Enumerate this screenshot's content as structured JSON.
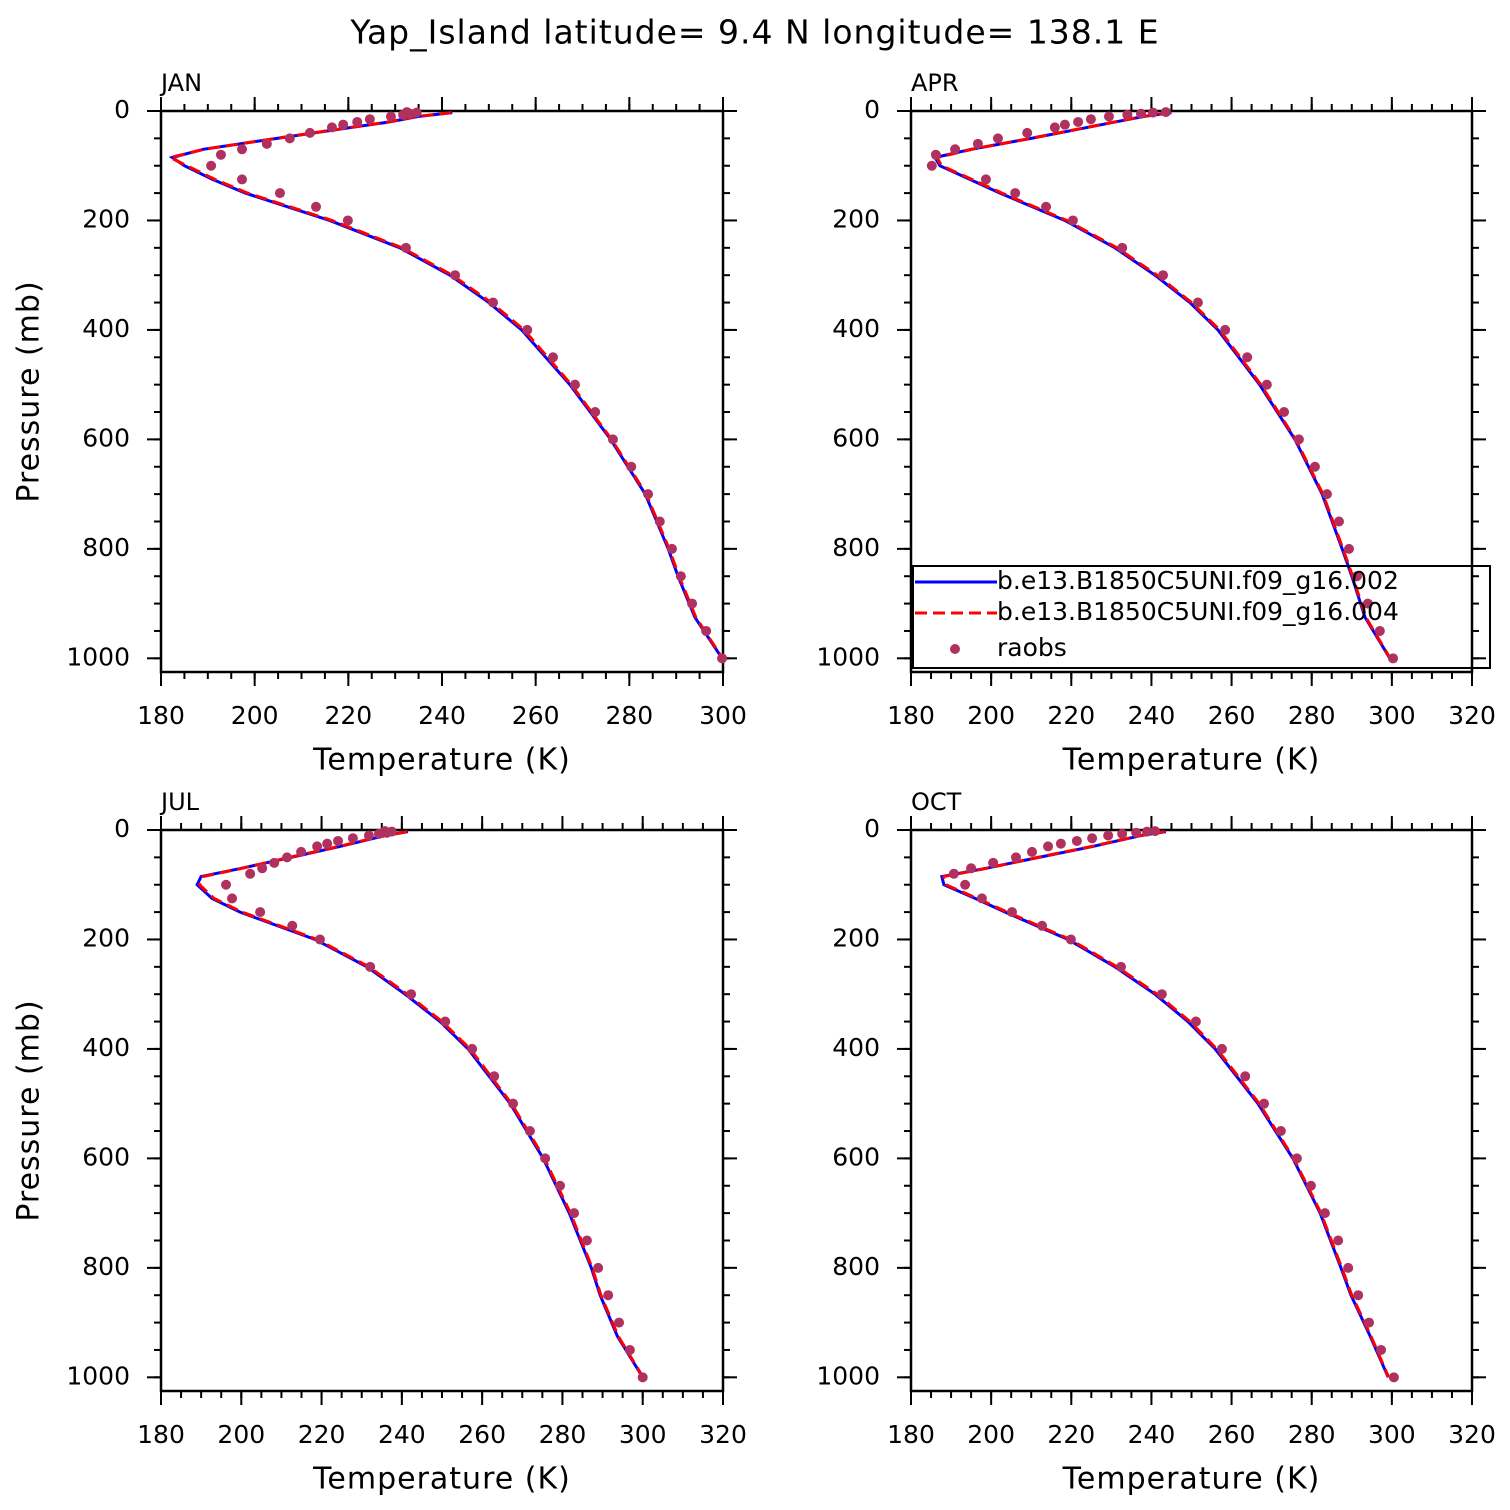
{
  "title": "Yap_Island  latitude= 9.4 N longitude= 138.1 E",
  "chart_data": [
    {
      "type": "line",
      "title": "JAN",
      "y_label": "Pressure (mb)",
      "x_label": "Temperature (K)",
      "xlim": [
        180,
        300
      ],
      "xticks": [
        180,
        200,
        220,
        240,
        260,
        280,
        300
      ],
      "x_minor_step": 5,
      "ylim": [
        1025,
        0
      ],
      "yticks": [
        0,
        200,
        400,
        600,
        800,
        1000
      ],
      "y_minor_step": 50,
      "series": [
        {
          "color": "#0000ff",
          "style": "solid",
          "y": [
            3,
            10,
            20,
            30,
            50,
            70,
            85,
            100,
            125,
            150,
            200,
            250,
            300,
            350,
            400,
            500,
            600,
            700,
            800,
            850,
            925,
            1000
          ],
          "x": [
            242.2,
            234.9,
            228.8,
            220.7,
            204.8,
            189,
            182.4,
            185,
            191,
            198,
            216,
            231,
            241.7,
            250,
            257,
            267.3,
            276,
            283.4,
            288.3,
            290.4,
            294,
            299.8
          ]
        },
        {
          "color": "#ff0000",
          "style": "dashed",
          "y": [
            3,
            10,
            20,
            30,
            50,
            70,
            85,
            100,
            125,
            150,
            200,
            250,
            300,
            350,
            400,
            500,
            600,
            700,
            800,
            850,
            925,
            1000
          ],
          "x": [
            242,
            234.6,
            228.5,
            220.5,
            204.5,
            189.2,
            182,
            185.5,
            191.5,
            198.5,
            216.5,
            231.5,
            242.2,
            250.5,
            257.5,
            267.6,
            276.2,
            283.6,
            288.5,
            290.6,
            294.2,
            299.9
          ]
        },
        {
          "color": "#b03060",
          "style": "dots",
          "y": [
            1000,
            950,
            900,
            850,
            800,
            750,
            700,
            650,
            600,
            550,
            500,
            450,
            400,
            350,
            300,
            250,
            200,
            175,
            150,
            125,
            100,
            80,
            70,
            60,
            50,
            40,
            30,
            25,
            20,
            15,
            10,
            7,
            5,
            3,
            2
          ],
          "x": [
            299.8,
            296.4,
            293.4,
            291,
            289.1,
            286.5,
            284,
            280.4,
            276.5,
            272.7,
            268.4,
            263.7,
            258.2,
            250.9,
            242.8,
            232.3,
            219.9,
            213.1,
            205.4,
            197.3,
            190.7,
            192.8,
            197.3,
            202.6,
            207.5,
            211.8,
            216.5,
            218.9,
            221.9,
            224.6,
            229.1,
            231.7,
            233.2,
            234.6,
            232.5
          ]
        }
      ]
    },
    {
      "type": "line",
      "title": "APR",
      "x_label": "Temperature (K)",
      "legend": "lower right",
      "xlim": [
        180,
        320
      ],
      "xticks": [
        180,
        200,
        220,
        240,
        260,
        280,
        300,
        320
      ],
      "x_minor_step": 5,
      "ylim": [
        1025,
        0
      ],
      "yticks": [
        0,
        200,
        400,
        600,
        800,
        1000
      ],
      "y_minor_step": 50,
      "series": [
        {
          "name": "b.e13.B1850C5UNI.f09_g16.002",
          "color": "#0000ff",
          "style": "solid",
          "y": [
            3,
            10,
            20,
            30,
            50,
            70,
            85,
            100,
            125,
            150,
            200,
            250,
            300,
            350,
            400,
            500,
            600,
            700,
            800,
            850,
            925,
            1000
          ],
          "x": [
            245,
            238,
            231,
            224,
            210,
            195,
            186,
            187.2,
            194.7,
            202.2,
            218.4,
            230.9,
            240.9,
            249.6,
            256.6,
            267,
            275.8,
            282.6,
            287.6,
            290,
            293.3,
            299.5
          ]
        },
        {
          "name": "b.e13.B1850C5UNI.f09_g16.004",
          "color": "#ff0000",
          "style": "dashed",
          "y": [
            3,
            10,
            20,
            30,
            50,
            70,
            85,
            100,
            125,
            150,
            200,
            250,
            300,
            350,
            400,
            500,
            600,
            700,
            800,
            850,
            925,
            1000
          ],
          "x": [
            244.8,
            237.8,
            230.8,
            223.8,
            209.8,
            195.2,
            186.5,
            187.6,
            195.2,
            202.7,
            218.9,
            231.4,
            241.4,
            250,
            257,
            267.3,
            276,
            282.8,
            287.8,
            290.2,
            293.5,
            299.6
          ]
        },
        {
          "name": "raobs",
          "color": "#b03060",
          "style": "dots",
          "y": [
            1000,
            950,
            900,
            850,
            800,
            750,
            700,
            650,
            600,
            550,
            500,
            450,
            400,
            350,
            300,
            250,
            200,
            175,
            150,
            125,
            100,
            80,
            70,
            60,
            50,
            40,
            30,
            25,
            20,
            15,
            10,
            7,
            5,
            3,
            2
          ],
          "x": [
            300.3,
            297,
            294,
            291.3,
            289.3,
            286.8,
            283.8,
            280.8,
            276.8,
            273.1,
            268.8,
            263.9,
            258.4,
            251.6,
            242.9,
            232.7,
            220.4,
            213.7,
            206,
            198.7,
            185.2,
            186.2,
            191,
            196.7,
            201.7,
            209,
            215.9,
            218.4,
            221.7,
            224.9,
            229.4,
            234,
            237.4,
            240.4,
            243.6
          ]
        }
      ]
    },
    {
      "type": "line",
      "title": "JUL",
      "y_label": "Pressure (mb)",
      "x_label": "Temperature (K)",
      "xlim": [
        180,
        320
      ],
      "xticks": [
        180,
        200,
        220,
        240,
        260,
        280,
        300,
        320
      ],
      "x_minor_step": 5,
      "ylim": [
        1025,
        0
      ],
      "yticks": [
        0,
        200,
        400,
        600,
        800,
        1000
      ],
      "y_minor_step": 50,
      "series": [
        {
          "color": "#0000ff",
          "style": "solid",
          "y": [
            3,
            10,
            20,
            30,
            50,
            70,
            85,
            100,
            125,
            150,
            200,
            250,
            300,
            350,
            400,
            500,
            600,
            700,
            800,
            850,
            925,
            1000
          ],
          "x": [
            241.5,
            236,
            230.3,
            224.6,
            212.4,
            200,
            190,
            189,
            192.7,
            199.7,
            218.4,
            231.3,
            240.8,
            249.5,
            256.5,
            267,
            275.2,
            281.7,
            287.2,
            289.4,
            293.7,
            300
          ]
        },
        {
          "color": "#ff0000",
          "style": "dashed",
          "y": [
            3,
            10,
            20,
            30,
            50,
            70,
            85,
            100,
            125,
            150,
            200,
            250,
            300,
            350,
            400,
            500,
            600,
            700,
            800,
            850,
            925,
            1000
          ],
          "x": [
            241.3,
            235.8,
            230,
            224.3,
            212,
            200.2,
            190.5,
            189.6,
            193.2,
            200.2,
            218.9,
            231.8,
            241.3,
            250,
            257,
            267.3,
            275.5,
            282,
            287.4,
            289.6,
            293.9,
            300.1
          ]
        },
        {
          "color": "#b03060",
          "style": "dots",
          "y": [
            1000,
            950,
            900,
            850,
            800,
            750,
            700,
            650,
            600,
            550,
            500,
            450,
            400,
            350,
            300,
            250,
            200,
            175,
            150,
            125,
            100,
            80,
            70,
            60,
            50,
            40,
            30,
            25,
            20,
            15,
            10,
            7,
            5,
            3,
            2
          ],
          "x": [
            300,
            296.8,
            294.1,
            291.4,
            288.9,
            286.1,
            282.9,
            279.4,
            275.7,
            271.9,
            267.7,
            263,
            257.5,
            250.8,
            242.3,
            232.1,
            219.6,
            212.7,
            204.7,
            197.7,
            196.2,
            202.2,
            205.2,
            208.2,
            211.4,
            214.9,
            218.9,
            221.4,
            224.1,
            227.8,
            231.8,
            234.3,
            236.3,
            237.5,
            235.8
          ]
        }
      ]
    },
    {
      "type": "line",
      "title": "OCT",
      "x_label": "Temperature (K)",
      "xlim": [
        180,
        320
      ],
      "xticks": [
        180,
        200,
        220,
        240,
        260,
        280,
        300,
        320
      ],
      "x_minor_step": 5,
      "ylim": [
        1025,
        0
      ],
      "yticks": [
        0,
        200,
        400,
        600,
        800,
        1000
      ],
      "y_minor_step": 50,
      "series": [
        {
          "color": "#0000ff",
          "style": "solid",
          "y": [
            3,
            10,
            20,
            30,
            50,
            70,
            85,
            100,
            125,
            150,
            200,
            250,
            300,
            350,
            400,
            500,
            600,
            700,
            800,
            850,
            925,
            1000
          ],
          "x": [
            243.6,
            237.6,
            231.4,
            225.4,
            211.9,
            198.7,
            187.7,
            188.2,
            196,
            203.5,
            219.2,
            230.9,
            240.9,
            249.1,
            255.9,
            266.6,
            275.3,
            282.1,
            287.3,
            289.8,
            294.6,
            299.1
          ]
        },
        {
          "color": "#ff0000",
          "style": "dashed",
          "y": [
            3,
            10,
            20,
            30,
            50,
            70,
            85,
            100,
            125,
            150,
            200,
            250,
            300,
            350,
            400,
            500,
            600,
            700,
            800,
            850,
            925,
            1000
          ],
          "x": [
            243.4,
            237.4,
            231.1,
            225.1,
            211.6,
            198.9,
            188.2,
            188.7,
            196.5,
            204,
            219.7,
            231.4,
            241.4,
            249.6,
            256.3,
            266.9,
            275.5,
            282.3,
            287.5,
            290,
            294.8,
            299.2
          ]
        },
        {
          "color": "#b03060",
          "style": "dots",
          "y": [
            1000,
            950,
            900,
            850,
            800,
            750,
            700,
            650,
            600,
            550,
            500,
            450,
            400,
            350,
            300,
            250,
            200,
            175,
            150,
            125,
            100,
            80,
            70,
            60,
            50,
            40,
            30,
            25,
            20,
            15,
            10,
            7,
            5,
            3,
            2
          ],
          "x": [
            300.5,
            297.3,
            294.3,
            291.6,
            289.1,
            286.6,
            283.3,
            279.8,
            276.3,
            272.3,
            268.1,
            263.4,
            257.6,
            251.1,
            242.6,
            232.4,
            219.9,
            212.7,
            205.2,
            197.7,
            193.5,
            190.7,
            195,
            200.5,
            206.2,
            210.2,
            214.2,
            217.4,
            221.4,
            225.2,
            229.2,
            232.7,
            236.2,
            238.9,
            240.9
          ]
        }
      ]
    }
  ]
}
